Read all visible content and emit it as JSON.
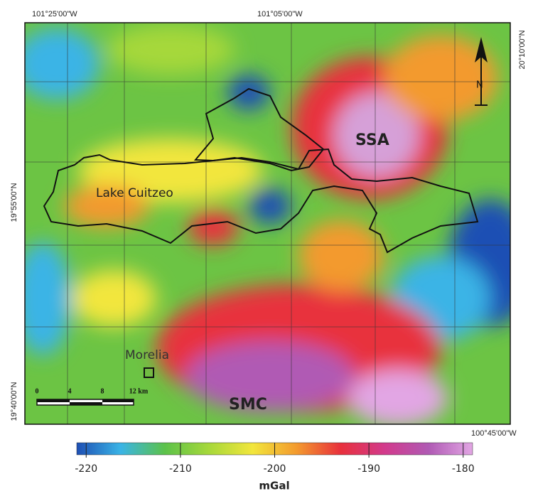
{
  "map": {
    "coordinate_labels": {
      "top_left": "101°25'00\"W",
      "top_center": "101°05'00\"W",
      "right_top": "20°10'00\"N",
      "left_middle": "19°55'00\"N",
      "left_bottom": "19°40'00\"N",
      "bottom_right": "100°45'00\"W"
    },
    "labels": {
      "lake": "Lake Cuitzeo",
      "ssa": "SSA",
      "smc": "SMC",
      "city": "Morelia",
      "north": "N"
    },
    "scale_bar": [
      "0",
      "4",
      "8",
      "12 km"
    ]
  },
  "colorbar": {
    "unit": "mGal",
    "lim": [
      -221,
      -179
    ],
    "ticks": [
      -220,
      -210,
      -200,
      -190,
      -180
    ],
    "colors": [
      "#1e4fb4",
      "#3ab4e6",
      "#5cc24a",
      "#a6d83a",
      "#f2e63c",
      "#f39a2e",
      "#e8303c",
      "#d23a8c",
      "#b05ab4",
      "#e2a6e4"
    ]
  }
}
